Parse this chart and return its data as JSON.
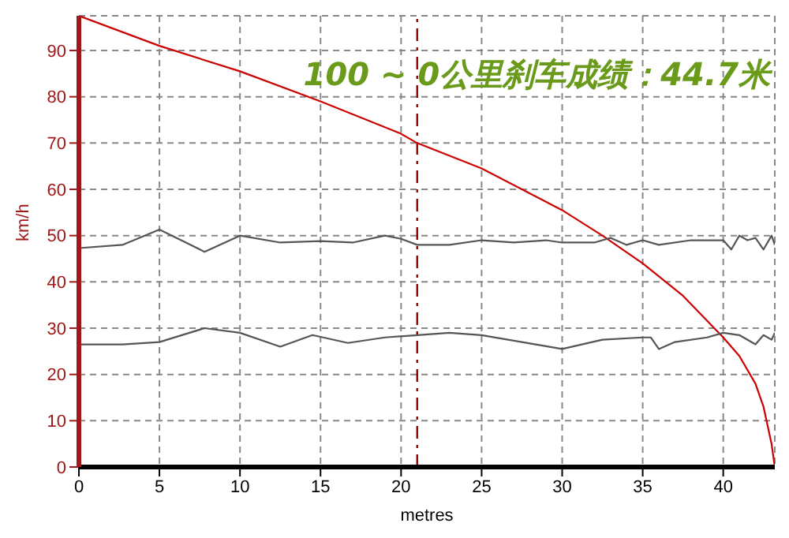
{
  "chart_data": {
    "type": "line",
    "title": "100 ~ 0公里刹车成绩：44.7米",
    "xlabel": "metres",
    "ylabel": "km/h",
    "xlim": [
      0,
      43.2
    ],
    "xticks": [
      0,
      5,
      10,
      15,
      20,
      25,
      30,
      35,
      40
    ],
    "ylim": [
      0,
      97.5
    ],
    "yticks": [
      0,
      10,
      20,
      30,
      40,
      50,
      60,
      70,
      80,
      90
    ],
    "grid": true,
    "marker": "none",
    "ref_lines": [
      {
        "axis": "x",
        "value": 21,
        "color": "#990000",
        "line_style": "dashed"
      }
    ],
    "series": [
      {
        "color": "#cc0000",
        "x": [
          0,
          5,
          10,
          15,
          20,
          21,
          25,
          30,
          32.5,
          35,
          37.5,
          40,
          41,
          42,
          42.5,
          43,
          43.2
        ],
        "values": [
          97.5,
          91,
          85.5,
          79,
          72,
          70,
          64.5,
          55.5,
          50,
          44,
          37,
          28,
          24,
          18,
          13,
          5,
          0
        ]
      },
      {
        "color": "#555555",
        "x": [
          0,
          2.7,
          5,
          7.8,
          10,
          12.5,
          15,
          17,
          19,
          20,
          21,
          23,
          25,
          27,
          29,
          30,
          32,
          33,
          34,
          35,
          36,
          38,
          40,
          40.5,
          41,
          41.5,
          42,
          42.5,
          43,
          43.2
        ],
        "values": [
          47.3,
          48,
          51.3,
          46.5,
          50,
          48.5,
          48.8,
          48.5,
          50,
          49.3,
          48,
          48,
          49,
          48.5,
          49,
          48.5,
          48.5,
          49.5,
          48,
          49,
          48,
          49,
          49,
          47,
          50,
          49,
          49.5,
          47,
          50,
          48
        ]
      },
      {
        "color": "#555555",
        "x": [
          0,
          2.7,
          5,
          7.8,
          10,
          12.5,
          14.5,
          16.7,
          19,
          21,
          23,
          25,
          27.5,
          30,
          32.5,
          35,
          35.5,
          36,
          37,
          39,
          40,
          41,
          42,
          42.5,
          43,
          43.2
        ],
        "values": [
          26.5,
          26.5,
          27,
          30,
          29,
          26,
          28.5,
          26.8,
          28,
          28.5,
          29,
          28.5,
          27,
          25.5,
          27.5,
          28,
          28,
          25.5,
          27,
          28,
          29,
          28.5,
          26.5,
          28.5,
          27.5,
          29
        ]
      }
    ]
  }
}
